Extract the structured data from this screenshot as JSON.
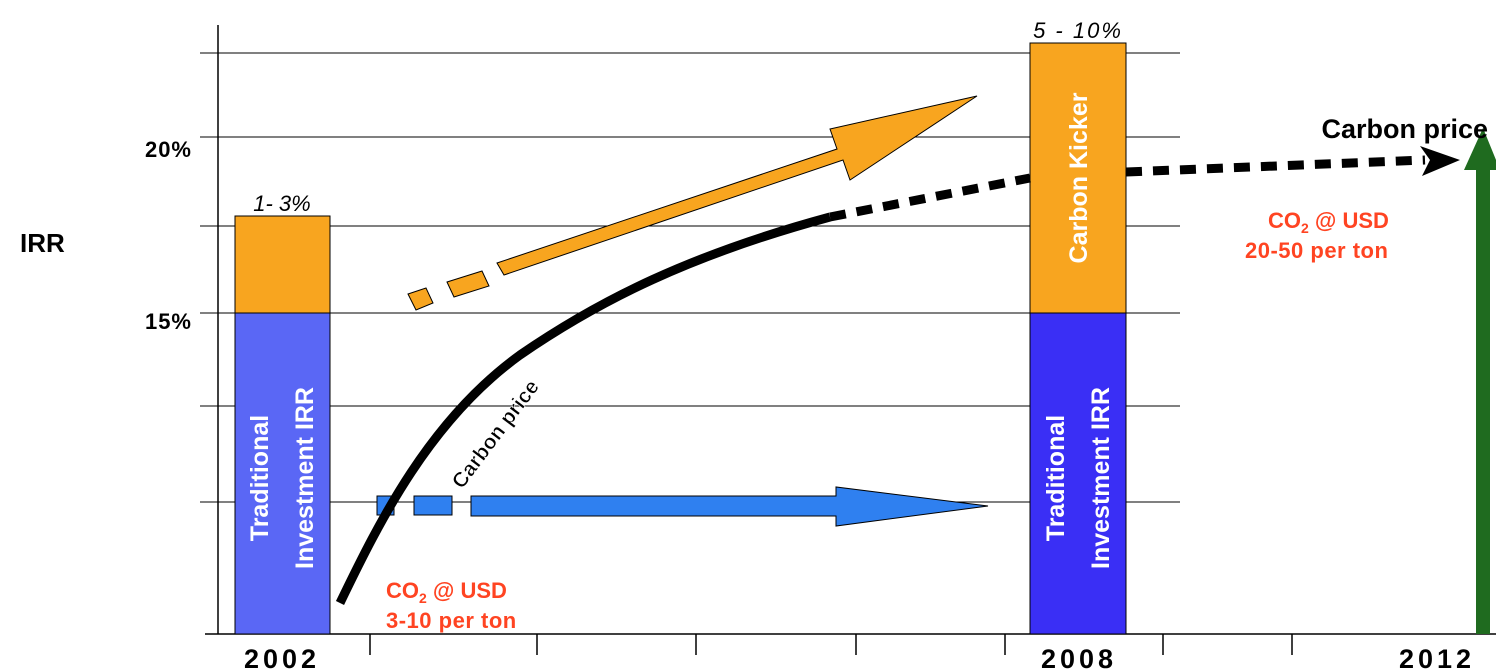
{
  "chart_data": {
    "type": "bar",
    "ylabel": "IRR",
    "y_ticks": [
      "20%",
      "15%"
    ],
    "categories": [
      "2002",
      "2008",
      "2012"
    ],
    "series": [
      {
        "name": "Traditional Investment IRR",
        "values": [
          15,
          15,
          null
        ]
      },
      {
        "name": "Carbon Kicker",
        "values": [
          2,
          7.5,
          null
        ]
      }
    ],
    "bar_top_labels": [
      "1- 3%",
      "5 - 10%"
    ],
    "bar_texts": {
      "traditional_line1": "Traditional",
      "traditional_line2": "Investment IRR",
      "carbon_kicker": "Carbon Kicker"
    },
    "annotations": {
      "curve_label": "Carbon price",
      "end_label": "Carbon price",
      "low_co2_line1": "CO",
      "low_co2_sub": "2",
      "low_co2_rest": " @ USD",
      "low_co2_line2": "3-10 per ton",
      "high_co2_line1": "CO",
      "high_co2_sub": "2",
      "high_co2_rest": " @ USD",
      "high_co2_line2": "20-50 per ton"
    },
    "colors": {
      "traditional_2002": "#5a67f5",
      "traditional_2008": "#3a2ff5",
      "carbon_kicker": "#f8a51f",
      "blue_arrow": "#2f80f0",
      "orange_arrow": "#f8a51f",
      "green_arrow": "#1f6b1f",
      "co2_text": "#ff4422"
    }
  }
}
